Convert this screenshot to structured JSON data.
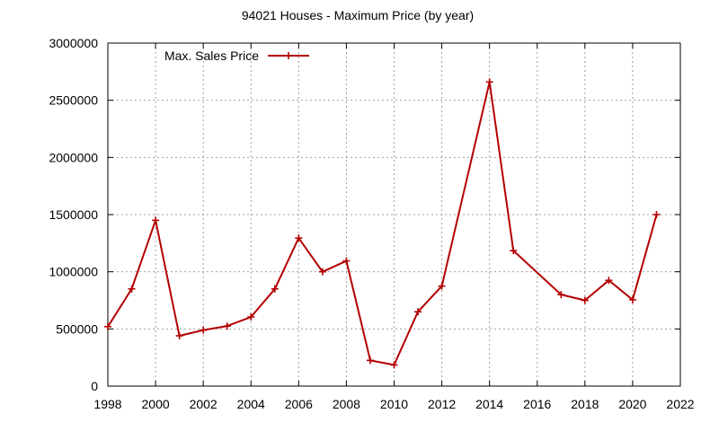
{
  "chart_data": {
    "type": "line",
    "title": "94021 Houses - Maximum Price (by year)",
    "xlabel": "",
    "ylabel": "",
    "xlim": [
      1998,
      2022
    ],
    "ylim": [
      0,
      3000000
    ],
    "x_ticks": [
      "1998",
      "2000",
      "2002",
      "2004",
      "2006",
      "2008",
      "2010",
      "2012",
      "2014",
      "2016",
      "2018",
      "2020",
      "2022"
    ],
    "y_ticks": [
      "0",
      "500000",
      "1000000",
      "1500000",
      "2000000",
      "2500000",
      "3000000"
    ],
    "grid": true,
    "legend_position": "top-left",
    "series": [
      {
        "name": "Max. Sales Price",
        "color": "#b40000",
        "marker": "plus",
        "x": [
          1998,
          1999,
          2000,
          2001,
          2002,
          2003,
          2004,
          2005,
          2006,
          2007,
          2008,
          2009,
          2010,
          2011,
          2012,
          2014,
          2015,
          2017,
          2018,
          2019,
          2020,
          2021
        ],
        "y": [
          520000,
          850000,
          1450000,
          440000,
          490000,
          525000,
          605000,
          850000,
          1295000,
          1000000,
          1095000,
          225000,
          185000,
          650000,
          875000,
          2660000,
          1185000,
          800000,
          750000,
          925000,
          755000,
          1500000
        ]
      }
    ]
  }
}
